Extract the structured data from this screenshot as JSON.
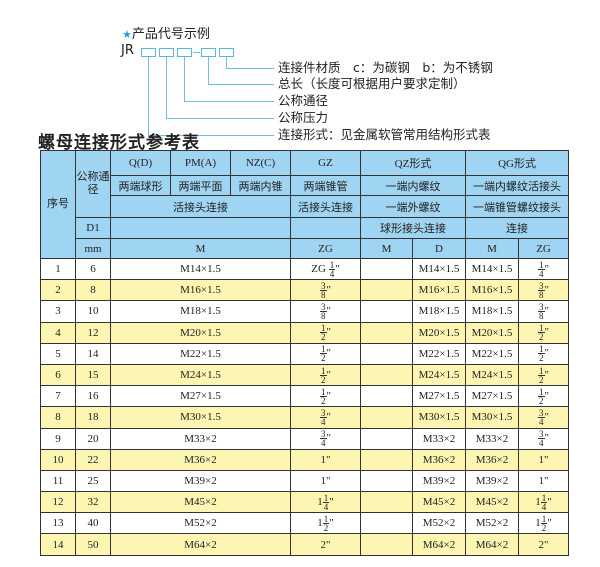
{
  "code_example": {
    "star_icon": "star-icon",
    "title": "产品代号示例",
    "prefix": "JR",
    "legend": [
      "连接件材质　c：为碳钢　b：为不锈钢",
      "总长（长度可根据用户要求定制）",
      "公称通径",
      "公称压力",
      "连接形式：见金属软管常用结构形式表"
    ]
  },
  "table_title": "螺母连接形式参考表",
  "colors": {
    "header": "#9fd4f2",
    "alt_row": "#fdf5b2",
    "accent": "#2a9fd6"
  },
  "header": {
    "seq": "序号",
    "nominal": "公称通径",
    "d1": "D1",
    "mm": "mm",
    "q": "Q(D)",
    "pm": "PM(A)",
    "nz": "NZ(C)",
    "gz": "GZ",
    "qz": "QZ形式",
    "qg": "QG形式",
    "q_desc": "两端球形",
    "pm_desc": "两端平面",
    "nz_desc": "两端内锥",
    "gz_desc": "两端锥管",
    "qz_desc1": "一端内螺纹",
    "qg_desc1": "一端内螺纹活接头",
    "union": "活接头连接",
    "gz_union": "活接头连接",
    "qz_desc2": "一端外螺纹",
    "qg_desc2": "一端锥管螺纹接头",
    "qz_desc3": "球形接头连接",
    "qg_desc3": "连接",
    "m": "M",
    "zg": "ZG",
    "qz_m": "M",
    "qz_d": "D",
    "qg_m": "M",
    "qg_zg": "ZG"
  },
  "rows": [
    {
      "no": "1",
      "dn": "6",
      "m": "M14×1.5",
      "gz": {
        "pre": "ZG",
        "whole": "",
        "n": "1",
        "d": "4"
      },
      "qz_m": "",
      "qz_d": "M14×1.5",
      "qg_m": "M14×1.5",
      "qg_zg": {
        "whole": "",
        "n": "1",
        "d": "4"
      }
    },
    {
      "no": "2",
      "dn": "8",
      "m": "M16×1.5",
      "gz": {
        "whole": "",
        "n": "3",
        "d": "8"
      },
      "qz_m": "",
      "qz_d": "M16×1.5",
      "qg_m": "M16×1.5",
      "qg_zg": {
        "whole": "",
        "n": "3",
        "d": "8"
      }
    },
    {
      "no": "3",
      "dn": "10",
      "m": "M18×1.5",
      "gz": {
        "whole": "",
        "n": "3",
        "d": "8"
      },
      "qz_m": "",
      "qz_d": "M18×1.5",
      "qg_m": "M18×1.5",
      "qg_zg": {
        "whole": "",
        "n": "3",
        "d": "8"
      }
    },
    {
      "no": "4",
      "dn": "12",
      "m": "M20×1.5",
      "gz": {
        "whole": "",
        "n": "1",
        "d": "2"
      },
      "qz_m": "",
      "qz_d": "M20×1.5",
      "qg_m": "M20×1.5",
      "qg_zg": {
        "whole": "",
        "n": "1",
        "d": "2"
      }
    },
    {
      "no": "5",
      "dn": "14",
      "m": "M22×1.5",
      "gz": {
        "whole": "",
        "n": "1",
        "d": "2"
      },
      "qz_m": "",
      "qz_d": "M22×1.5",
      "qg_m": "M22×1.5",
      "qg_zg": {
        "whole": "",
        "n": "1",
        "d": "2"
      }
    },
    {
      "no": "6",
      "dn": "15",
      "m": "M24×1.5",
      "gz": {
        "whole": "",
        "n": "1",
        "d": "2"
      },
      "qz_m": "",
      "qz_d": "M24×1.5",
      "qg_m": "M24×1.5",
      "qg_zg": {
        "whole": "",
        "n": "1",
        "d": "2"
      }
    },
    {
      "no": "7",
      "dn": "16",
      "m": "M27×1.5",
      "gz": {
        "whole": "",
        "n": "1",
        "d": "2"
      },
      "qz_m": "",
      "qz_d": "M27×1.5",
      "qg_m": "M27×1.5",
      "qg_zg": {
        "whole": "",
        "n": "1",
        "d": "2"
      }
    },
    {
      "no": "8",
      "dn": "18",
      "m": "M30×1.5",
      "gz": {
        "whole": "",
        "n": "3",
        "d": "4"
      },
      "qz_m": "",
      "qz_d": "M30×1.5",
      "qg_m": "M30×1.5",
      "qg_zg": {
        "whole": "",
        "n": "3",
        "d": "4"
      }
    },
    {
      "no": "9",
      "dn": "20",
      "m": "M33×2",
      "gz": {
        "whole": "",
        "n": "3",
        "d": "4"
      },
      "qz_m": "",
      "qz_d": "M33×2",
      "qg_m": "M33×2",
      "qg_zg": {
        "whole": "",
        "n": "3",
        "d": "4"
      }
    },
    {
      "no": "10",
      "dn": "22",
      "m": "M36×2",
      "gz": {
        "whole": "1"
      },
      "qz_m": "",
      "qz_d": "M36×2",
      "qg_m": "M36×2",
      "qg_zg": {
        "whole": "1"
      }
    },
    {
      "no": "11",
      "dn": "25",
      "m": "M39×2",
      "gz": {
        "whole": "1"
      },
      "qz_m": "",
      "qz_d": "M39×2",
      "qg_m": "M39×2",
      "qg_zg": {
        "whole": "1"
      }
    },
    {
      "no": "12",
      "dn": "32",
      "m": "M45×2",
      "gz": {
        "whole": "1",
        "n": "1",
        "d": "4"
      },
      "qz_m": "",
      "qz_d": "M45×2",
      "qg_m": "M45×2",
      "qg_zg": {
        "whole": "1",
        "n": "1",
        "d": "4"
      }
    },
    {
      "no": "13",
      "dn": "40",
      "m": "M52×2",
      "gz": {
        "whole": "1",
        "n": "1",
        "d": "2"
      },
      "qz_m": "",
      "qz_d": "M52×2",
      "qg_m": "M52×2",
      "qg_zg": {
        "whole": "1",
        "n": "1",
        "d": "2"
      }
    },
    {
      "no": "14",
      "dn": "50",
      "m": "M64×2",
      "gz": {
        "whole": "2"
      },
      "qz_m": "",
      "qz_d": "M64×2",
      "qg_m": "M64×2",
      "qg_zg": {
        "whole": "2"
      }
    }
  ]
}
